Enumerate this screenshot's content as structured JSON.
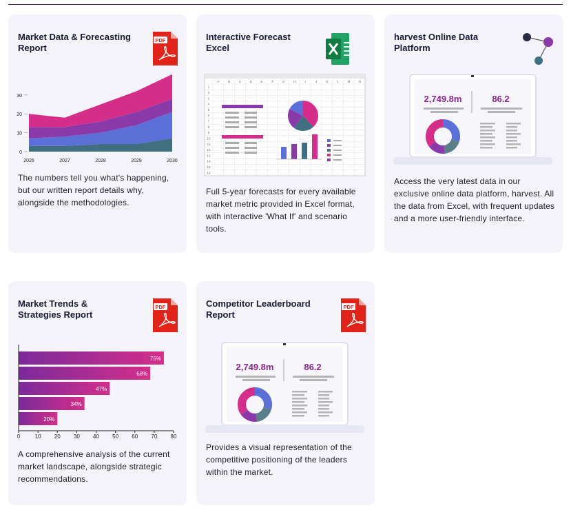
{
  "cards": [
    {
      "title": "Market Data & Forecasting Report",
      "icon_label": "PDF",
      "description": "The numbers tell you what's happening, but our written report details why, alongside the methodologies.",
      "chart_data": {
        "type": "area",
        "x": [
          2026,
          2027,
          2028,
          2029,
          2030
        ],
        "xlim": [
          2026,
          2030
        ],
        "series": [
          {
            "color": "#3f6f80",
            "values": [
              3,
              3,
              4,
              4,
              7
            ]
          },
          {
            "color": "#5b6fd8",
            "values": [
              4,
              5,
              6,
              10,
              14
            ]
          },
          {
            "color": "#8a3aa8",
            "values": [
              6,
              5,
              6,
              7,
              7
            ]
          },
          {
            "color": "#d42e8a",
            "values": [
              7,
              5,
              9,
              11,
              13
            ]
          }
        ],
        "ylim": [
          0,
          42
        ],
        "yticks": [
          0,
          10,
          20,
          30
        ]
      }
    },
    {
      "title": "Interactive Forecast Excel",
      "description": "Full 5-year forecasts for every available market metric provided in Excel format, with interactive 'What If' and scenario tools.",
      "sheet_columns": [
        "A",
        "B",
        "C",
        "D",
        "E",
        "F",
        "G",
        "H",
        "I",
        "J",
        "K",
        "L",
        "M",
        "N"
      ],
      "sheet_rows": [
        1,
        2,
        3,
        4,
        5,
        6,
        7,
        8,
        9,
        10,
        11,
        12,
        13,
        14,
        15,
        16
      ]
    },
    {
      "title": "harvest Online Data Platform",
      "description": "Access the very latest data in our exclusive online data platform, harvest. All the data from Excel, with frequent updates and a more user-friendly interface.",
      "stats": [
        "2,749.8m",
        "86.2"
      ]
    },
    {
      "title": "Market Trends & Strategies Report",
      "icon_label": "PDF",
      "description": "A comprehensive analysis of the current market landscape, alongside strategic recommendations.",
      "chart_data": {
        "type": "bar",
        "orientation": "horizontal",
        "values": [
          75,
          68,
          47,
          34,
          20
        ],
        "value_labels": [
          "75%",
          "68%",
          "47%",
          "34%",
          "20%"
        ],
        "xlim": [
          0,
          80
        ],
        "xticks": [
          0,
          10,
          20,
          30,
          40,
          50,
          60,
          70,
          80
        ]
      }
    },
    {
      "title": "Competitor Leaderboard Report",
      "icon_label": "PDF",
      "description": "Provides a visual representation of the competitive positioning of the leaders within the market.",
      "stats": [
        "2,749.8m",
        "86.2"
      ]
    }
  ]
}
